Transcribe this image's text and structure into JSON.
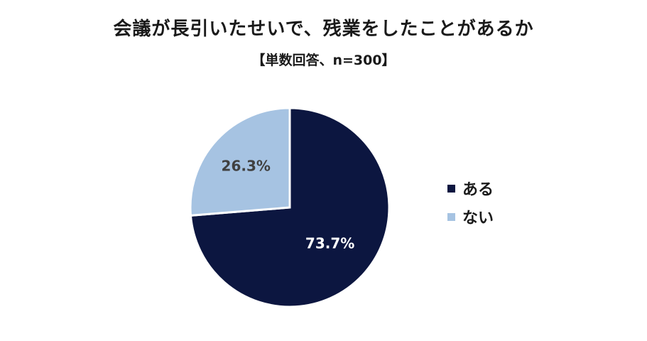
{
  "chart_data": {
    "type": "pie",
    "title": "会議が長引いたせいで、残業をしたことがあるか",
    "subtitle": "【単数回答、n=300】",
    "categories": [
      "ある",
      "ない"
    ],
    "values": [
      73.7,
      26.3
    ],
    "value_labels": [
      "73.7%",
      "26.3%"
    ],
    "colors": [
      "#0c1640",
      "#a6c3e2"
    ],
    "label_colors": [
      "#ffffff",
      "#404040"
    ],
    "legend": "right"
  }
}
